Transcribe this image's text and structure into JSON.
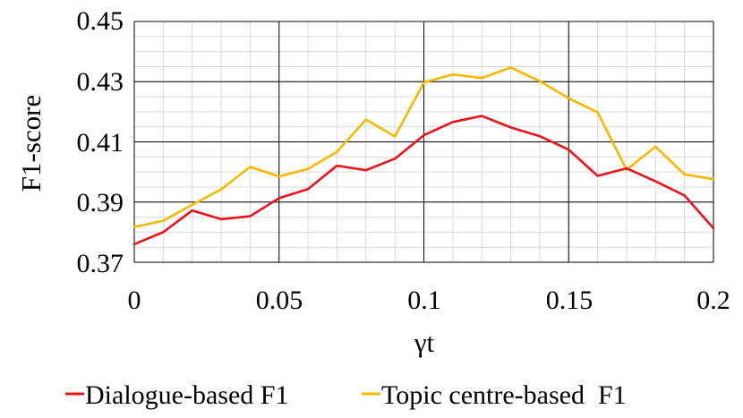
{
  "chart_data": {
    "type": "line",
    "title": "",
    "xlabel": "γt",
    "ylabel": "F1-score",
    "xlim": [
      0,
      0.2
    ],
    "ylim": [
      0.37,
      0.45
    ],
    "x_ticks": [
      "0",
      "0.05",
      "0.1",
      "0.15",
      "0.2"
    ],
    "y_ticks": [
      "0.37",
      "0.39",
      "0.41",
      "0.43",
      "0.45"
    ],
    "grid": "major and minor",
    "legend_position": "bottom",
    "x": [
      0,
      0.01,
      0.02,
      0.03,
      0.04,
      0.05,
      0.06,
      0.07,
      0.08,
      0.09,
      0.1,
      0.11,
      0.12,
      0.13,
      0.14,
      0.15,
      0.16,
      0.17,
      0.18,
      0.19,
      0.2
    ],
    "series": [
      {
        "name": "Dialogue-based F1",
        "color": "#e8141b",
        "values": [
          0.376,
          0.38,
          0.3872,
          0.3843,
          0.3853,
          0.3913,
          0.3943,
          0.4021,
          0.4006,
          0.4044,
          0.4122,
          0.4166,
          0.4186,
          0.4148,
          0.4119,
          0.4074,
          0.3987,
          0.4012,
          0.3969,
          0.3922,
          0.3813
        ]
      },
      {
        "name": "Topic centre-based  F1",
        "color": "#f5b800",
        "values": [
          0.3817,
          0.3838,
          0.3891,
          0.3942,
          0.4017,
          0.3985,
          0.401,
          0.4067,
          0.4174,
          0.4118,
          0.4297,
          0.4324,
          0.4312,
          0.4347,
          0.4302,
          0.4245,
          0.4198,
          0.4007,
          0.4084,
          0.3992,
          0.3976
        ]
      }
    ]
  }
}
